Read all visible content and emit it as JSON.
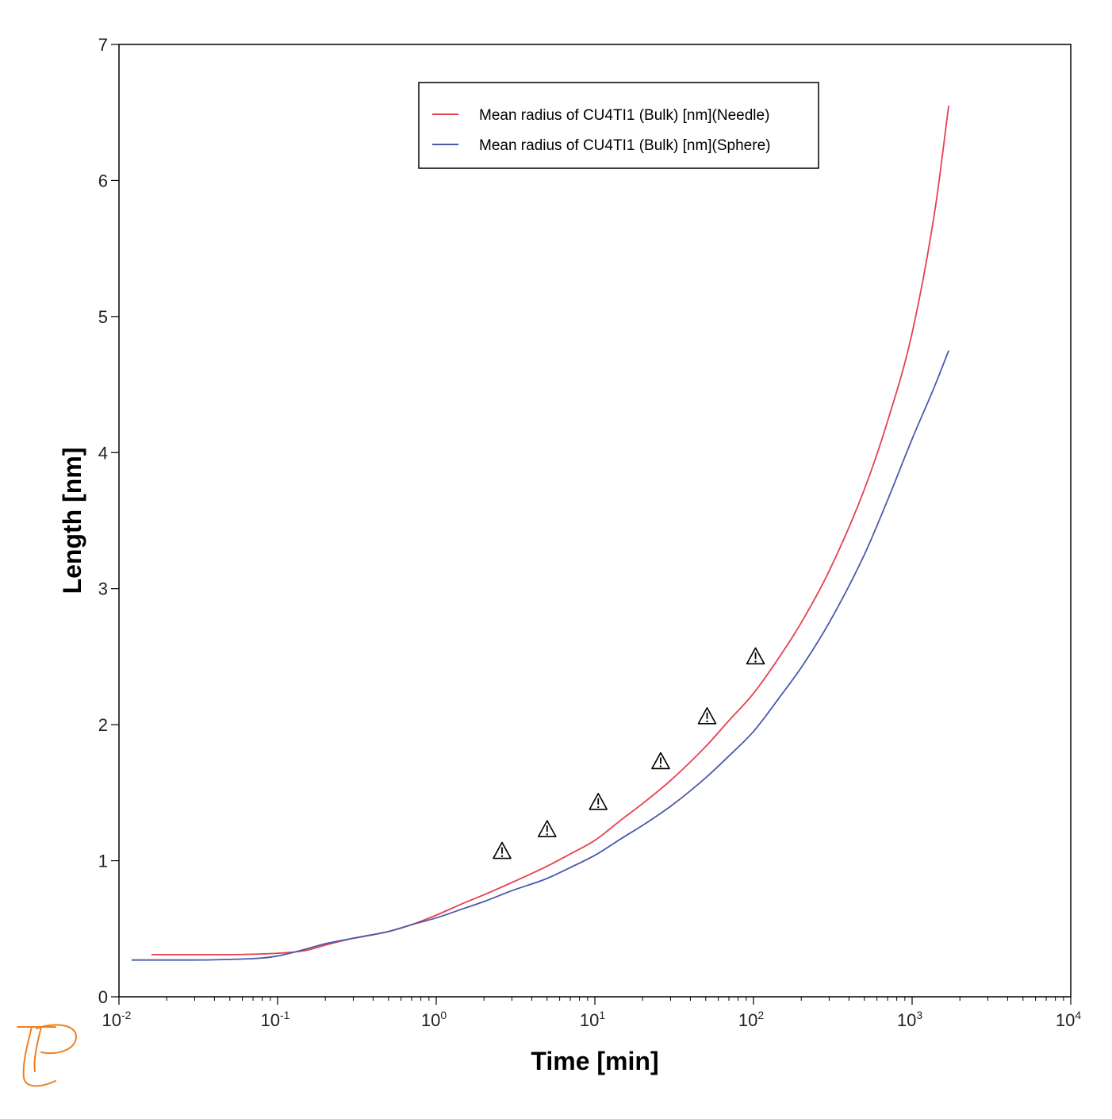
{
  "chart_data": {
    "type": "line",
    "title": "",
    "xlabel": "Time [min]",
    "ylabel": "Length [nm]",
    "x_scale": "log",
    "xlim": [
      0.01,
      10000
    ],
    "ylim": [
      0,
      7
    ],
    "grid": false,
    "legend_position": "top-center",
    "x_ticks": [
      {
        "base": "10",
        "exp": "-2",
        "value": 0.01
      },
      {
        "base": "10",
        "exp": "-1",
        "value": 0.1
      },
      {
        "base": "10",
        "exp": "0",
        "value": 1
      },
      {
        "base": "10",
        "exp": "1",
        "value": 10
      },
      {
        "base": "10",
        "exp": "2",
        "value": 100
      },
      {
        "base": "10",
        "exp": "3",
        "value": 1000
      },
      {
        "base": "10",
        "exp": "4",
        "value": 10000
      }
    ],
    "y_ticks": [
      "0",
      "1",
      "2",
      "3",
      "4",
      "5",
      "6",
      "7"
    ],
    "series": [
      {
        "name": "Mean radius of CU4TI1 (Bulk) [nm](Needle)",
        "color": "#e8404f",
        "x": [
          0.016,
          0.02,
          0.03,
          0.05,
          0.08,
          0.1,
          0.15,
          0.2,
          0.3,
          0.5,
          0.7,
          1,
          1.5,
          2,
          3,
          5,
          7,
          10,
          15,
          20,
          30,
          50,
          70,
          100,
          150,
          200,
          300,
          500,
          700,
          1000,
          1400,
          1700
        ],
        "y": [
          0.31,
          0.31,
          0.31,
          0.31,
          0.315,
          0.32,
          0.34,
          0.38,
          0.43,
          0.48,
          0.53,
          0.6,
          0.69,
          0.75,
          0.84,
          0.96,
          1.05,
          1.15,
          1.31,
          1.42,
          1.59,
          1.84,
          2.03,
          2.23,
          2.52,
          2.75,
          3.13,
          3.73,
          4.23,
          4.88,
          5.8,
          6.55
        ]
      },
      {
        "name": "Mean radius of CU4TI1 (Bulk) [nm](Sphere)",
        "color": "#4a5aab",
        "x": [
          0.012,
          0.02,
          0.03,
          0.05,
          0.08,
          0.1,
          0.15,
          0.2,
          0.3,
          0.5,
          0.7,
          1,
          1.5,
          2,
          3,
          5,
          7,
          10,
          15,
          20,
          30,
          50,
          70,
          100,
          150,
          200,
          300,
          500,
          700,
          1000,
          1400,
          1700
        ],
        "y": [
          0.27,
          0.27,
          0.27,
          0.275,
          0.285,
          0.3,
          0.35,
          0.39,
          0.43,
          0.48,
          0.53,
          0.58,
          0.65,
          0.7,
          0.78,
          0.87,
          0.95,
          1.04,
          1.17,
          1.26,
          1.4,
          1.61,
          1.77,
          1.95,
          2.22,
          2.42,
          2.75,
          3.25,
          3.65,
          4.1,
          4.5,
          4.75
        ]
      }
    ],
    "markers": {
      "symbol": "warning-triangle",
      "color": "#000000",
      "x": [
        2.6,
        5.0,
        10.5,
        26,
        51,
        103
      ],
      "y": [
        1.07,
        1.23,
        1.43,
        1.73,
        2.06,
        2.5
      ]
    }
  },
  "logo": {
    "icon": "pe-logo-icon",
    "color": "#f07f1e"
  }
}
